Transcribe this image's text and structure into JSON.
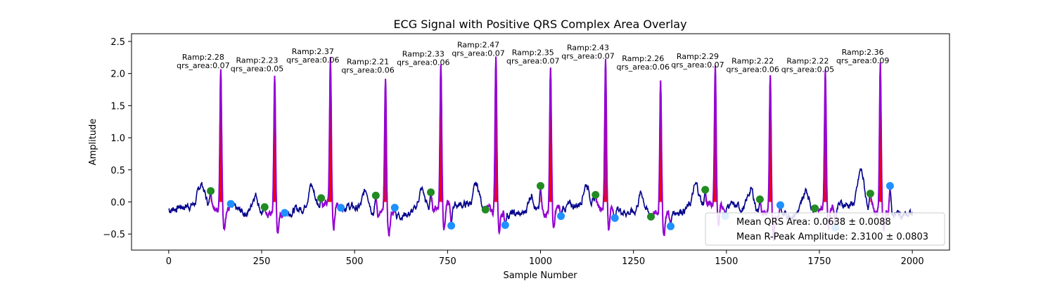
{
  "chart_data": {
    "type": "line",
    "title": "ECG Signal with Positive QRS Complex Area Overlay",
    "xlabel": "Sample Number",
    "ylabel": "Amplitude",
    "xlim": [
      -100,
      2100
    ],
    "ylim": [
      -0.75,
      2.62
    ],
    "xticks": [
      0,
      250,
      500,
      750,
      1000,
      1250,
      1500,
      1750,
      2000
    ],
    "yticks": [
      -0.5,
      0.0,
      0.5,
      1.0,
      1.5,
      2.0,
      2.5
    ],
    "grid": false,
    "colors": {
      "signal": "#00008b",
      "qrs_segment": "#9400d3",
      "area_fill": "#ff0000",
      "qrs_onset": "#228b22",
      "qrs_offset": "#1e90ff"
    },
    "beats": [
      {
        "r_sample": 140,
        "r_amp": 2.28,
        "qrs_area": 0.07,
        "onset": [
          113,
          0.17
        ],
        "offset": [
          167,
          -0.03
        ]
      },
      {
        "r_sample": 285,
        "r_amp": 2.23,
        "qrs_area": 0.05,
        "onset": [
          258,
          -0.08
        ],
        "offset": [
          312,
          -0.17
        ]
      },
      {
        "r_sample": 435,
        "r_amp": 2.37,
        "qrs_area": 0.06,
        "onset": [
          410,
          0.06
        ],
        "offset": [
          463,
          -0.09
        ]
      },
      {
        "r_sample": 583,
        "r_amp": 2.21,
        "qrs_area": 0.06,
        "onset": [
          557,
          0.1
        ],
        "offset": [
          608,
          -0.09
        ]
      },
      {
        "r_sample": 732,
        "r_amp": 2.33,
        "qrs_area": 0.06,
        "onset": [
          705,
          0.15
        ],
        "offset": [
          760,
          -0.37
        ]
      },
      {
        "r_sample": 880,
        "r_amp": 2.47,
        "qrs_area": 0.07,
        "onset": [
          852,
          -0.12
        ],
        "offset": [
          905,
          -0.36
        ]
      },
      {
        "r_sample": 1027,
        "r_amp": 2.35,
        "qrs_area": 0.07,
        "onset": [
          1000,
          0.25
        ],
        "offset": [
          1055,
          -0.22
        ]
      },
      {
        "r_sample": 1175,
        "r_amp": 2.43,
        "qrs_area": 0.07,
        "onset": [
          1148,
          0.11
        ],
        "offset": [
          1200,
          -0.25
        ]
      },
      {
        "r_sample": 1323,
        "r_amp": 2.26,
        "qrs_area": 0.06,
        "onset": [
          1297,
          -0.23
        ],
        "offset": [
          1350,
          -0.38
        ]
      },
      {
        "r_sample": 1470,
        "r_amp": 2.29,
        "qrs_area": 0.07,
        "onset": [
          1443,
          0.19
        ],
        "offset": [
          1497,
          -0.22
        ]
      },
      {
        "r_sample": 1618,
        "r_amp": 2.22,
        "qrs_area": 0.06,
        "onset": [
          1590,
          0.04
        ],
        "offset": [
          1645,
          -0.05
        ]
      },
      {
        "r_sample": 1766,
        "r_amp": 2.22,
        "qrs_area": 0.05,
        "onset": [
          1738,
          -0.1
        ],
        "offset": [
          1793,
          -0.4
        ]
      },
      {
        "r_sample": 1914,
        "r_amp": 2.36,
        "qrs_area": 0.09,
        "onset": [
          1887,
          0.13
        ],
        "offset": [
          1940,
          0.25
        ]
      }
    ],
    "legend": {
      "placement": "lower right",
      "entries": [
        "Mean QRS Area: 0.0638 ± 0.0088",
        "Mean R-Peak Amplitude: 2.3100 ± 0.0803"
      ]
    }
  }
}
